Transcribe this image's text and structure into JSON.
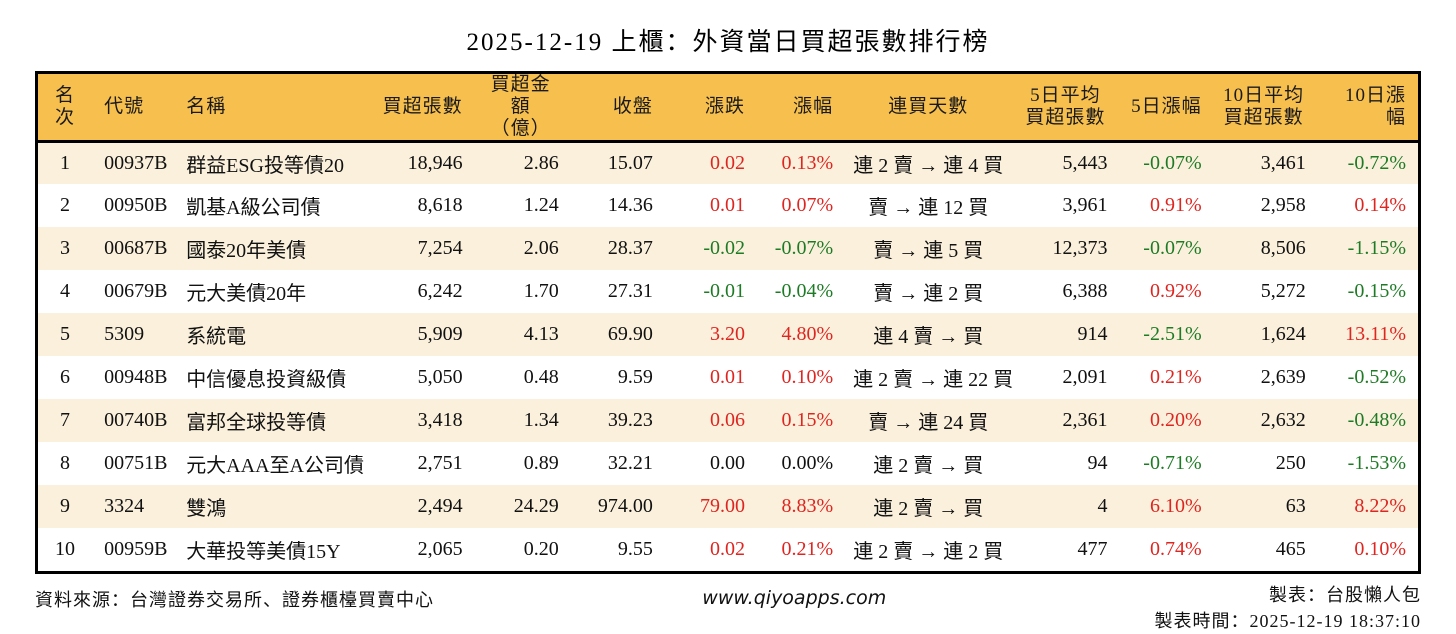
{
  "title": "2025-12-19 上櫃：外資當日買超張數排行榜",
  "colors": {
    "header_bg": "#F6BF4E",
    "row_alt_bg": "#FAF0DC",
    "up": "#DF2520",
    "down": "#1E7B25",
    "neutral": "#111111"
  },
  "table": {
    "columns": [
      {
        "key": "rank",
        "label": "名次",
        "width": 58,
        "header_align": "center",
        "align": "center",
        "colored": false
      },
      {
        "key": "code",
        "label": "代號",
        "width": 82,
        "header_align": "left",
        "align": "left",
        "colored": false
      },
      {
        "key": "name",
        "label": "名稱",
        "width": 196,
        "header_align": "left",
        "align": "left",
        "colored": false
      },
      {
        "key": "buy_volume",
        "label": "買超張數",
        "width": 100,
        "header_align": "right",
        "align": "right",
        "colored": false
      },
      {
        "key": "buy_amount",
        "label": "買超金額\n（億）",
        "width": 96,
        "header_align": "center",
        "align": "right",
        "colored": false
      },
      {
        "key": "close",
        "label": "收盤",
        "width": 94,
        "header_align": "right",
        "align": "right",
        "colored": false
      },
      {
        "key": "change",
        "label": "漲跌",
        "width": 92,
        "header_align": "right",
        "align": "right",
        "colored": true
      },
      {
        "key": "change_pct",
        "label": "漲幅",
        "width": 88,
        "header_align": "right",
        "align": "right",
        "colored": true
      },
      {
        "key": "streak",
        "label": "連買天數",
        "width": 170,
        "header_align": "center",
        "align": "center",
        "colored": false
      },
      {
        "key": "avg5",
        "label": "5日平均\n買超張數",
        "width": 104,
        "header_align": "center",
        "align": "right",
        "colored": false
      },
      {
        "key": "pct5",
        "label": "5日漲幅",
        "width": 94,
        "header_align": "right",
        "align": "right",
        "colored": true
      },
      {
        "key": "avg10",
        "label": "10日平均\n買超張數",
        "width": 104,
        "header_align": "center",
        "align": "right",
        "colored": false
      },
      {
        "key": "pct10",
        "label": "10日漲幅",
        "width": 100,
        "header_align": "right",
        "align": "right",
        "colored": true
      }
    ],
    "rows": [
      {
        "rank": "1",
        "code": "00937B",
        "name": "群益ESG投等債20",
        "buy_volume": "18,946",
        "buy_amount": "2.86",
        "close": "15.07",
        "change": "0.02",
        "change_pct": "0.13%",
        "streak": "連 2 賣 → 連 4 買",
        "avg5": "5,443",
        "pct5": "-0.07%",
        "avg10": "3,461",
        "pct10": "-0.72%"
      },
      {
        "rank": "2",
        "code": "00950B",
        "name": "凱基A級公司債",
        "buy_volume": "8,618",
        "buy_amount": "1.24",
        "close": "14.36",
        "change": "0.01",
        "change_pct": "0.07%",
        "streak": "賣 → 連 12 買",
        "avg5": "3,961",
        "pct5": "0.91%",
        "avg10": "2,958",
        "pct10": "0.14%"
      },
      {
        "rank": "3",
        "code": "00687B",
        "name": "國泰20年美債",
        "buy_volume": "7,254",
        "buy_amount": "2.06",
        "close": "28.37",
        "change": "-0.02",
        "change_pct": "-0.07%",
        "streak": "賣 → 連 5 買",
        "avg5": "12,373",
        "pct5": "-0.07%",
        "avg10": "8,506",
        "pct10": "-1.15%"
      },
      {
        "rank": "4",
        "code": "00679B",
        "name": "元大美債20年",
        "buy_volume": "6,242",
        "buy_amount": "1.70",
        "close": "27.31",
        "change": "-0.01",
        "change_pct": "-0.04%",
        "streak": "賣 → 連 2 買",
        "avg5": "6,388",
        "pct5": "0.92%",
        "avg10": "5,272",
        "pct10": "-0.15%"
      },
      {
        "rank": "5",
        "code": "5309",
        "name": "系統電",
        "buy_volume": "5,909",
        "buy_amount": "4.13",
        "close": "69.90",
        "change": "3.20",
        "change_pct": "4.80%",
        "streak": "連 4 賣 → 買",
        "avg5": "914",
        "pct5": "-2.51%",
        "avg10": "1,624",
        "pct10": "13.11%"
      },
      {
        "rank": "6",
        "code": "00948B",
        "name": "中信優息投資級債",
        "buy_volume": "5,050",
        "buy_amount": "0.48",
        "close": "9.59",
        "change": "0.01",
        "change_pct": "0.10%",
        "streak": "連 2 賣 → 連 22 買",
        "avg5": "2,091",
        "pct5": "0.21%",
        "avg10": "2,639",
        "pct10": "-0.52%"
      },
      {
        "rank": "7",
        "code": "00740B",
        "name": "富邦全球投等債",
        "buy_volume": "3,418",
        "buy_amount": "1.34",
        "close": "39.23",
        "change": "0.06",
        "change_pct": "0.15%",
        "streak": "賣 → 連 24 買",
        "avg5": "2,361",
        "pct5": "0.20%",
        "avg10": "2,632",
        "pct10": "-0.48%"
      },
      {
        "rank": "8",
        "code": "00751B",
        "name": "元大AAA至A公司債",
        "buy_volume": "2,751",
        "buy_amount": "0.89",
        "close": "32.21",
        "change": "0.00",
        "change_pct": "0.00%",
        "streak": "連 2 賣 → 買",
        "avg5": "94",
        "pct5": "-0.71%",
        "avg10": "250",
        "pct10": "-1.53%"
      },
      {
        "rank": "9",
        "code": "3324",
        "name": "雙鴻",
        "buy_volume": "2,494",
        "buy_amount": "24.29",
        "close": "974.00",
        "change": "79.00",
        "change_pct": "8.83%",
        "streak": "連 2 賣 → 買",
        "avg5": "4",
        "pct5": "6.10%",
        "avg10": "63",
        "pct10": "8.22%"
      },
      {
        "rank": "10",
        "code": "00959B",
        "name": "大華投等美債15Y",
        "buy_volume": "2,065",
        "buy_amount": "0.20",
        "close": "9.55",
        "change": "0.02",
        "change_pct": "0.21%",
        "streak": "連 2 賣 → 連 2 買",
        "avg5": "477",
        "pct5": "0.74%",
        "avg10": "465",
        "pct10": "0.10%"
      }
    ]
  },
  "footer": {
    "source": "資料來源：台灣證券交易所、證券櫃檯買賣中心",
    "website": "www.qiyoapps.com",
    "maker": "製表：台股懶人包",
    "made_time": "製表時間：2025-12-19 18:37:10"
  }
}
